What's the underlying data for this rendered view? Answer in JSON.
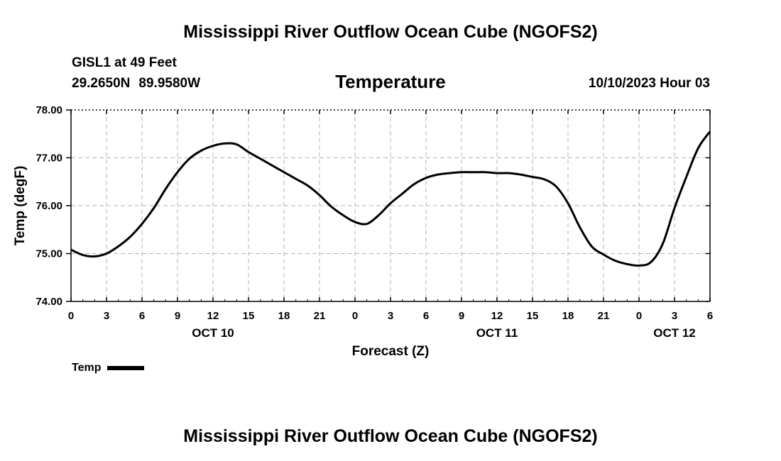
{
  "header": {
    "title_top": "Mississippi River Outflow Ocean Cube (NGOFS2)",
    "title_bottom": "Mississippi River Outflow Ocean Cube (NGOFS2)",
    "station": "GISL1 at 49 Feet",
    "lat": "29.2650N",
    "lon": "89.9580W",
    "chart_title": "Temperature",
    "datetime": "10/10/2023 Hour 03"
  },
  "legend": {
    "label": "Temp"
  },
  "chart_data": {
    "type": "line",
    "title": "Temperature",
    "xlabel": "Forecast (Z)",
    "ylabel": "Temp (degF)",
    "xlim": [
      0,
      54
    ],
    "ylim": [
      74,
      78
    ],
    "grid": true,
    "yticks": [
      74,
      75,
      76,
      77,
      78
    ],
    "ytick_labels": [
      "74.00",
      "75.00",
      "76.00",
      "77.00",
      "78.00"
    ],
    "xticks": [
      0,
      3,
      6,
      9,
      12,
      15,
      18,
      21,
      24,
      27,
      30,
      33,
      36,
      39,
      42,
      45,
      48,
      51,
      54
    ],
    "xtick_labels": [
      "0",
      "3",
      "6",
      "9",
      "12",
      "15",
      "18",
      "21",
      "0",
      "3",
      "6",
      "9",
      "12",
      "15",
      "18",
      "21",
      "0",
      "3",
      "6"
    ],
    "day_labels": [
      {
        "x": 12,
        "label": "OCT 10"
      },
      {
        "x": 36,
        "label": "OCT 11"
      },
      {
        "x": 51,
        "label": "OCT 12"
      }
    ],
    "series": [
      {
        "name": "Temp",
        "color": "#000000",
        "x": [
          0,
          1,
          2,
          3,
          4,
          5,
          6,
          7,
          8,
          9,
          10,
          11,
          12,
          13,
          14,
          15,
          16,
          17,
          18,
          19,
          20,
          21,
          22,
          23,
          24,
          25,
          26,
          27,
          28,
          29,
          30,
          31,
          32,
          33,
          34,
          35,
          36,
          37,
          38,
          39,
          40,
          41,
          42,
          43,
          44,
          45,
          46,
          47,
          48,
          49,
          50,
          51,
          52,
          53,
          54
        ],
        "y": [
          75.08,
          74.97,
          74.94,
          75.0,
          75.15,
          75.35,
          75.62,
          75.95,
          76.35,
          76.7,
          76.98,
          77.15,
          77.25,
          77.3,
          77.28,
          77.12,
          76.98,
          76.84,
          76.7,
          76.56,
          76.42,
          76.22,
          75.98,
          75.8,
          75.66,
          75.62,
          75.8,
          76.05,
          76.25,
          76.45,
          76.58,
          76.65,
          76.68,
          76.7,
          76.7,
          76.7,
          76.68,
          76.68,
          76.65,
          76.6,
          76.55,
          76.4,
          76.05,
          75.55,
          75.15,
          74.98,
          74.85,
          74.78,
          74.75,
          74.82,
          75.2,
          75.95,
          76.6,
          77.2,
          77.55
        ]
      }
    ]
  }
}
